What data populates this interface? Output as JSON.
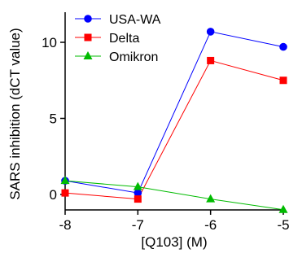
{
  "chart_data": {
    "type": "line",
    "title": "",
    "xlabel": "[Q103] (M)",
    "ylabel": "SARS inhibition (dCT value)",
    "x": [
      -8,
      -7,
      -6,
      -5
    ],
    "xticks": [
      -8,
      -7,
      -6,
      -5
    ],
    "yticks": [
      0,
      5,
      10
    ],
    "xlim": [
      -8,
      -5
    ],
    "ylim": [
      -1,
      12
    ],
    "grid": false,
    "legend_position": "top-left",
    "series": [
      {
        "name": "USA-WA",
        "color": "#0000ff",
        "marker": "circle",
        "values": [
          0.9,
          0.1,
          10.7,
          9.7
        ]
      },
      {
        "name": "Delta",
        "color": "#ff0000",
        "marker": "square",
        "values": [
          0.1,
          -0.3,
          8.8,
          7.5
        ]
      },
      {
        "name": "Omikron",
        "color": "#00bb00",
        "marker": "triangle",
        "values": [
          0.9,
          0.5,
          -0.3,
          -1.0
        ]
      }
    ]
  }
}
